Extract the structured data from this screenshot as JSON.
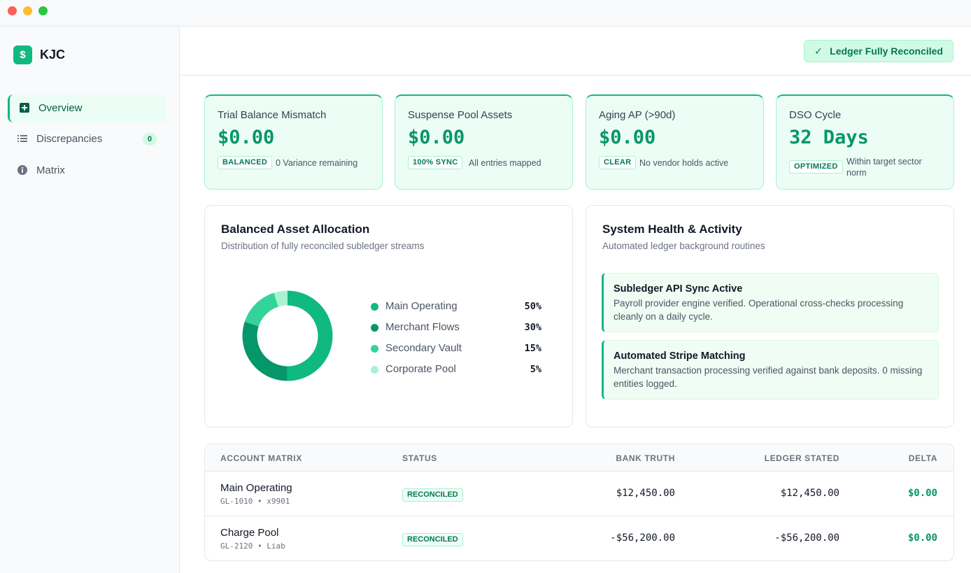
{
  "window": {
    "controls": [
      "close",
      "minimize",
      "maximize"
    ]
  },
  "app": {
    "logo_glyph": "$",
    "name": "KJC"
  },
  "sidebar": {
    "items": [
      {
        "label": "Overview",
        "icon": "plus-square-icon",
        "active": true
      },
      {
        "label": "Discrepancies",
        "icon": "list-icon",
        "badge": "0"
      },
      {
        "label": "Matrix",
        "icon": "info-icon"
      }
    ]
  },
  "header": {
    "status_check": "✓",
    "status_label": "Ledger Fully Reconciled"
  },
  "kpis": [
    {
      "label": "Trial Balance Mismatch",
      "value": "$0.00",
      "tag": "BALANCED",
      "note": "0 Variance remaining"
    },
    {
      "label": "Suspense Pool Assets",
      "value": "$0.00",
      "tag": "100% SYNC",
      "note": "All entries mapped"
    },
    {
      "label": "Aging AP (>90d)",
      "value": "$0.00",
      "tag": "CLEAR",
      "note": "No vendor holds active"
    },
    {
      "label": "DSO Cycle",
      "value": "32 Days",
      "tag": "OPTIMIZED",
      "note": "Within target sector norm"
    }
  ],
  "allocation": {
    "title": "Balanced Asset Allocation",
    "subtitle": "Distribution of fully reconciled subledger streams"
  },
  "chart_data": {
    "type": "pie",
    "title": "Balanced Asset Allocation",
    "categories": [
      "Main Operating",
      "Merchant Flows",
      "Secondary Vault",
      "Corporate Pool"
    ],
    "values": [
      50,
      30,
      15,
      5
    ],
    "labels": [
      "50%",
      "30%",
      "15%",
      "5%"
    ],
    "colors": [
      "#10b981",
      "#059669",
      "#34d399",
      "#a7f3d0"
    ],
    "legend": "right"
  },
  "health": {
    "title": "System Health & Activity",
    "subtitle": "Automated ledger background routines",
    "items": [
      {
        "title": "Subledger API Sync Active",
        "desc": "Payroll provider engine verified. Operational cross-checks processing cleanly on a daily cycle."
      },
      {
        "title": "Automated Stripe Matching",
        "desc": "Merchant transaction processing verified against bank deposits. 0 missing entities logged."
      }
    ]
  },
  "matrix": {
    "headers": {
      "account": "ACCOUNT MATRIX",
      "status": "STATUS",
      "bank": "BANK TRUTH",
      "ledger": "LEDGER STATED",
      "delta": "DELTA"
    },
    "rows": [
      {
        "name": "Main Operating",
        "code": "GL-1010 • x9901",
        "status": "RECONCILED",
        "bank": "$12,450.00",
        "ledger": "$12,450.00",
        "delta": "$0.00"
      },
      {
        "name": "Charge Pool",
        "code": "GL-2120 • Liab",
        "status": "RECONCILED",
        "bank": "-$56,200.00",
        "ledger": "-$56,200.00",
        "delta": "$0.00"
      }
    ]
  }
}
